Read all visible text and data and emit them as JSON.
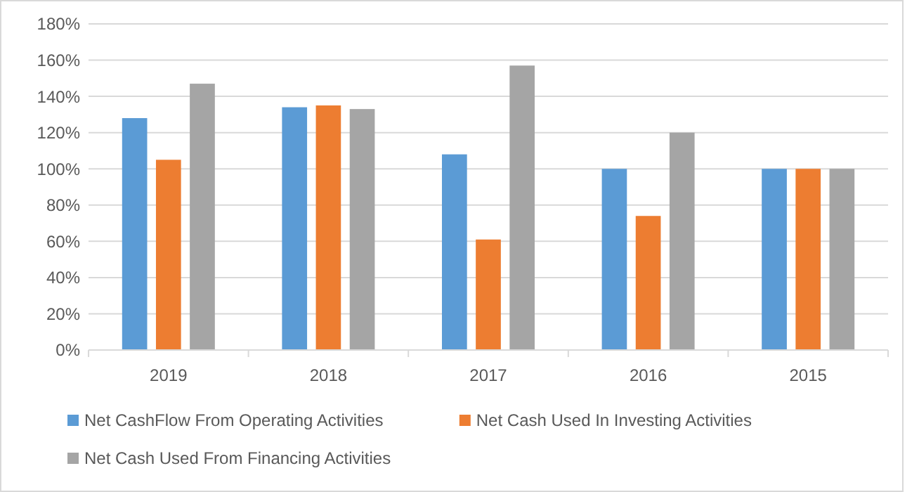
{
  "chart_data": {
    "type": "bar",
    "categories": [
      "2019",
      "2018",
      "2017",
      "2016",
      "2015"
    ],
    "series": [
      {
        "name": "Net CashFlow From Operating Activities",
        "color": "#5b9bd5",
        "values": [
          128,
          134,
          108,
          100,
          100
        ]
      },
      {
        "name": "Net Cash Used In Investing Activities",
        "color": "#ed7d31",
        "values": [
          105,
          135,
          61,
          74,
          100
        ]
      },
      {
        "name": "Net Cash Used From Financing Activities",
        "color": "#a5a5a5",
        "values": [
          147,
          133,
          157,
          120,
          100
        ]
      }
    ],
    "ylim": [
      0,
      180
    ],
    "yticks": [
      {
        "value": 0,
        "label": "0%"
      },
      {
        "value": 20,
        "label": "20%"
      },
      {
        "value": 40,
        "label": "40%"
      },
      {
        "value": 60,
        "label": "60%"
      },
      {
        "value": 80,
        "label": "80%"
      },
      {
        "value": 100,
        "label": "100%"
      },
      {
        "value": 120,
        "label": "120%"
      },
      {
        "value": 140,
        "label": "140%"
      },
      {
        "value": 160,
        "label": "160%"
      },
      {
        "value": 180,
        "label": "180%"
      }
    ],
    "grid": "y",
    "legend": "bottom"
  }
}
